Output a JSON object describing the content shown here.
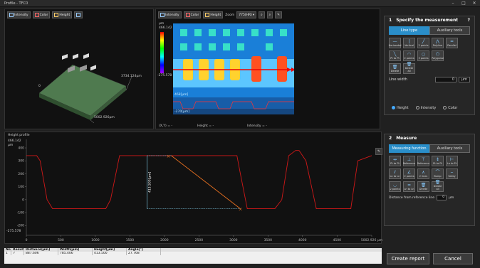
{
  "window": {
    "title": "Profile - TFC0",
    "min": "–",
    "max": "□",
    "close": "✕"
  },
  "view3d": {
    "toolbar": [
      {
        "label": "Intensity",
        "icon": "intensity-icon"
      },
      {
        "label": "Color",
        "icon": "color-icon"
      },
      {
        "label": "Height",
        "icon": "height-icon"
      }
    ],
    "labels": {
      "width": "5002.926µm",
      "depth": "3734.124µm",
      "zero": "0"
    }
  },
  "view2d": {
    "toolbar": [
      {
        "label": "Intensity",
        "icon": "intensity-icon"
      },
      {
        "label": "Color",
        "icon": "color-icon"
      },
      {
        "label": "Height",
        "icon": "height-icon"
      }
    ],
    "zoom_label": "Zoom",
    "zoom_value": "775(HR)",
    "scale": {
      "unit": "µm",
      "max": "466.142",
      "min": "-275.578"
    },
    "overlay": {
      "top": "468[µm]",
      "bottom": "-270[µm]"
    },
    "status": {
      "xy": "(X,Y) =  -",
      "height": "Height  =  -",
      "intensity": "Intensity  =  -"
    }
  },
  "section1": {
    "number": "1",
    "title": "Specify the measurement line",
    "help": "?",
    "tabs": [
      "Line type",
      "Auxiliary tools"
    ],
    "buttons": [
      "Horizontal",
      "Vertical",
      "2 points",
      "Polyline",
      "Parallel",
      "Pt to Pt",
      "2 points",
      "3 points",
      "Polygonal",
      "",
      "Delete",
      "Delete all"
    ],
    "line_width_label": "Line width",
    "line_width_value": "0",
    "line_width_unit": "µm",
    "modes": [
      "Height",
      "Intensity",
      "Color"
    ]
  },
  "profile": {
    "title": "Height profile",
    "y_max_label": "466.142",
    "y_unit": "µm",
    "y_ticks": [
      "400",
      "300",
      "200",
      "100",
      "0",
      "-100",
      "-200"
    ],
    "y_min_label": "-275.578",
    "x_ticks": [
      "0",
      "500",
      "1000",
      "1500",
      "2000",
      "2500",
      "3000",
      "3500",
      "4000",
      "4500",
      "5002.926 µm"
    ],
    "measure_label": "413.500[µm]"
  },
  "section2": {
    "number": "2",
    "title": "Measure",
    "tabs": [
      "Measuring function",
      "Auxiliary tools"
    ],
    "buttons": [
      "Pt to Pt",
      "Reference",
      "Reference",
      "Pt to Pt",
      "Lo to Pt",
      "Ln to Ln",
      "2 points",
      "2 lines",
      "Bump",
      "Valley",
      "2 points",
      "Ln to Ln",
      "Delete",
      "Delete all"
    ],
    "distance_label": "Distance from reference line",
    "distance_value": "0",
    "distance_unit": "µm"
  },
  "results": {
    "headers": [
      "No.",
      "Result",
      "Distance[µm]",
      "Width[µm]",
      "Height[µm]",
      "Angle[°]"
    ],
    "rows": [
      [
        "1",
        "✓",
        "887.606",
        "785.406",
        "413.500",
        "27.768"
      ]
    ]
  },
  "actions": {
    "create_report": "Create report",
    "cancel": "Cancel"
  },
  "chart_data": {
    "type": "line",
    "title": "Height profile",
    "xlabel": "",
    "ylabel": "µm",
    "xlim": [
      0,
      5002.926
    ],
    "ylim": [
      -275.578,
      466.142
    ],
    "x": [
      0,
      150,
      200,
      300,
      380,
      500,
      800,
      1150,
      1220,
      1350,
      1500,
      2000,
      2700,
      3050,
      3100,
      3200,
      3300,
      3600,
      3700,
      3800,
      3900,
      3950,
      4050,
      4200,
      4500,
      4700,
      4800,
      5002
    ],
    "series": [
      {
        "values": [
          340,
          340,
          300,
          0,
          -70,
          -70,
          -70,
          -70,
          0,
          340,
          340,
          340,
          340,
          340,
          200,
          -70,
          -70,
          -70,
          0,
          340,
          380,
          380,
          300,
          -70,
          -70,
          -70,
          300,
          340
        ]
      }
    ],
    "grid": false
  }
}
